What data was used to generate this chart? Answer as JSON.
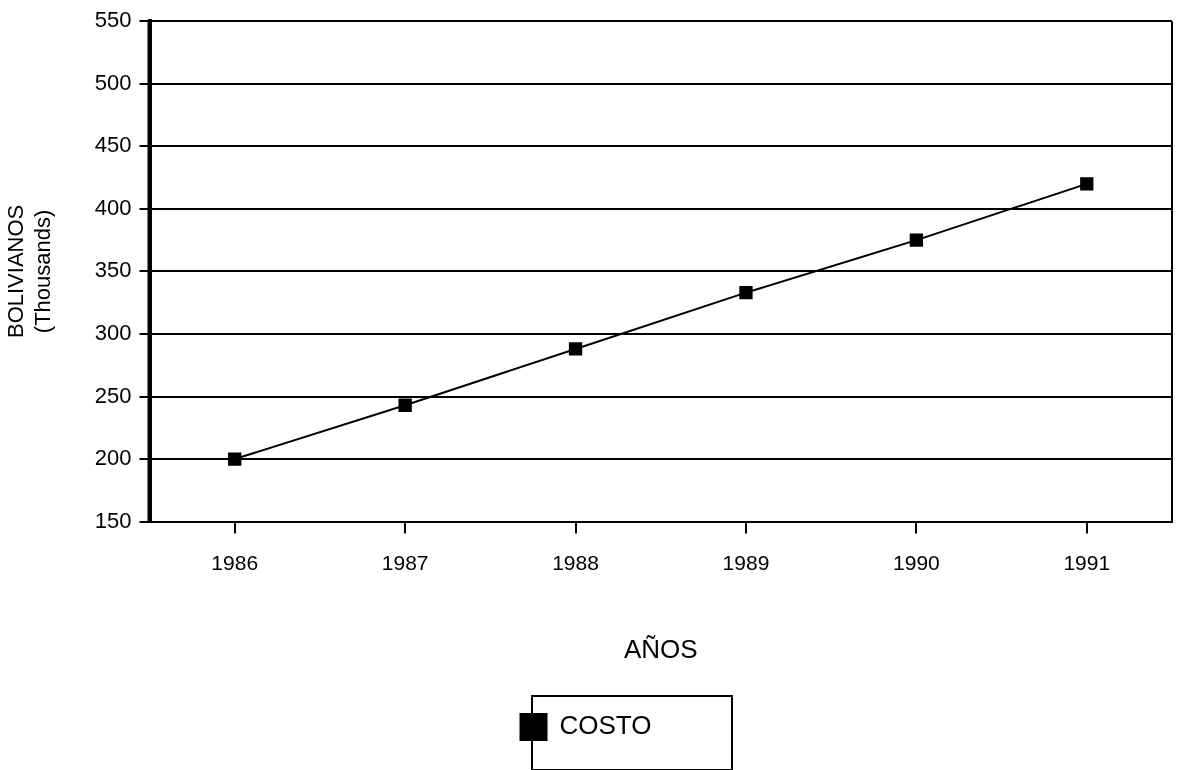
{
  "chart_data": {
    "type": "line",
    "xlabel": "AÑOS",
    "ylabel": "BOLIVIANOS\n(Thousands)",
    "categories": [
      "1986",
      "1987",
      "1988",
      "1989",
      "1990",
      "1991"
    ],
    "series": [
      {
        "name": "COSTO",
        "color": "#000000",
        "values": [
          200,
          243,
          288,
          333,
          375,
          420
        ]
      }
    ],
    "ylim": [
      150,
      550
    ],
    "yticks": [
      150,
      200,
      250,
      300,
      350,
      400,
      450,
      500,
      550
    ],
    "grid": "y",
    "legend": "bottom",
    "marker": "square",
    "line_style": "solid"
  }
}
